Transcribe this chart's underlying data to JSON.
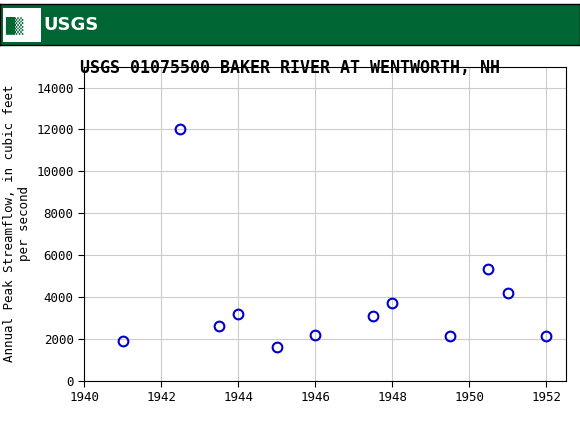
{
  "title": "USGS 01075500 BAKER RIVER AT WENTWORTH, NH",
  "ylabel": "Annual Peak Streamflow, in cubic feet\nper second",
  "years": [
    1941,
    1942.5,
    1943.5,
    1944,
    1945,
    1946,
    1947.5,
    1948,
    1949.5,
    1950.5,
    1951,
    1952
  ],
  "flows": [
    1900,
    12000,
    2600,
    3200,
    1600,
    2200,
    3100,
    3700,
    2150,
    5350,
    4200,
    2150
  ],
  "xlim": [
    1940,
    1952.5
  ],
  "ylim": [
    0,
    15000
  ],
  "yticks": [
    0,
    2000,
    4000,
    6000,
    8000,
    10000,
    12000,
    14000
  ],
  "xticks": [
    1940,
    1942,
    1944,
    1946,
    1948,
    1950,
    1952
  ],
  "marker_color": "#0000cc",
  "marker_size": 7,
  "marker_linewidth": 1.5,
  "grid_color": "#cccccc",
  "background_color": "#ffffff",
  "header_color": "#006633",
  "title_fontsize": 12,
  "axis_label_fontsize": 9,
  "tick_fontsize": 9,
  "usgs_logo_text": "USGS",
  "header_border_color": "#000000"
}
